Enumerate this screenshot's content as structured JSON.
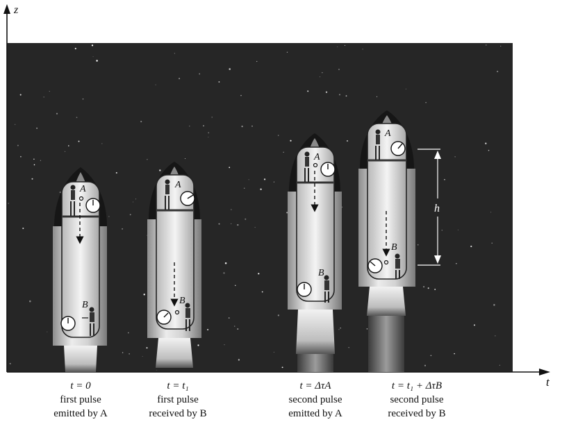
{
  "axes": {
    "z_label": "z",
    "t_label": "t"
  },
  "figure": {
    "height_label": "h",
    "observer_a": "A",
    "observer_b": "B"
  },
  "events": [
    {
      "time": "t = 0",
      "line1": "first pulse",
      "line2": "emitted by A"
    },
    {
      "time": "t = t₁",
      "line1": "first pulse",
      "line2": "received by B"
    },
    {
      "time": "t = ΔτA",
      "line1": "second pulse",
      "line2": "emitted by A"
    },
    {
      "time": "t = t₁ + ΔτB",
      "line1": "second pulse",
      "line2": "received by B"
    }
  ],
  "colors": {
    "space": "#262626",
    "axis": "#111111",
    "rocket_light": "#e6e6e6",
    "rocket_mid": "#9a9a9a"
  }
}
